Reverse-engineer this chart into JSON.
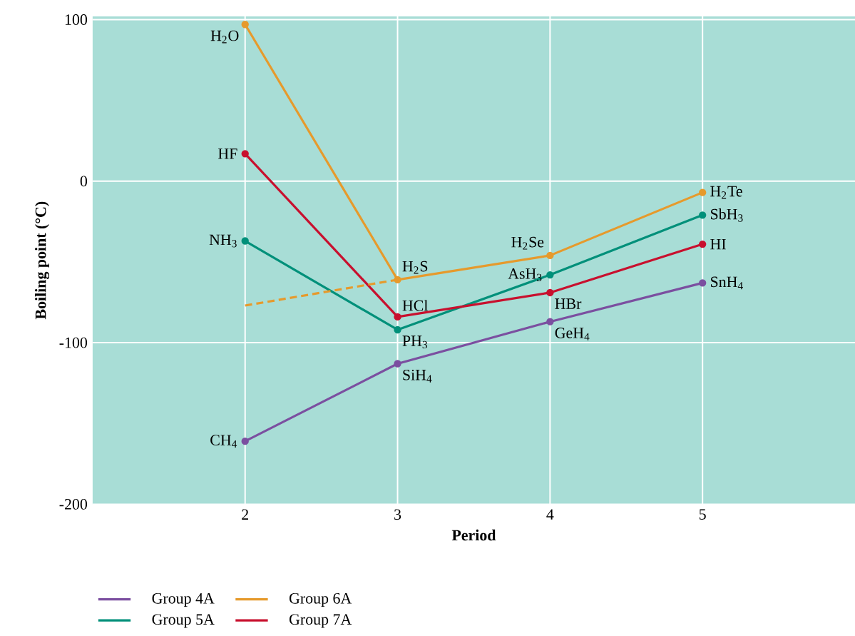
{
  "chart_data": {
    "type": "line",
    "xlabel": "Period",
    "ylabel": "Boiling point (°C)",
    "x": [
      2,
      3,
      4,
      5
    ],
    "series": [
      {
        "name": "Group 4A",
        "color": "#7b4fa0",
        "values": [
          -161,
          -113,
          -87,
          -63
        ]
      },
      {
        "name": "Group 5A",
        "color": "#00907a",
        "values": [
          -37,
          -92,
          -58,
          -21
        ]
      },
      {
        "name": "Group 6A",
        "color": "#e69a2c",
        "values": [
          97,
          -61,
          -46,
          -7
        ]
      },
      {
        "name": "Group 7A",
        "color": "#c8102e",
        "values": [
          17,
          -84,
          -69,
          -39
        ]
      },
      {
        "color": "#e69a2c",
        "x": [
          2,
          3
        ],
        "values": [
          -77,
          -61
        ],
        "line_style": "dashed",
        "marker": "none"
      }
    ],
    "xlim": [
      1,
      6
    ],
    "ylim": [
      -200,
      102
    ],
    "xticks": [
      2,
      3,
      4,
      5
    ],
    "yticks": [
      -200,
      -100,
      0,
      100
    ],
    "grid": true,
    "legend": "bottom",
    "marker": "circle",
    "line_style": "solid",
    "annotations": [
      {
        "text": "CH$_{4}$",
        "x": 2,
        "y": -161
      },
      {
        "text": "SiH$_{4}$",
        "x": 3,
        "y": -113
      },
      {
        "text": "GeH$_{4}$",
        "x": 4,
        "y": -87
      },
      {
        "text": "SnH$_{4}$",
        "x": 5,
        "y": -63
      },
      {
        "text": "NH$_{3}$",
        "x": 2,
        "y": -37
      },
      {
        "text": "PH$_{3}$",
        "x": 3,
        "y": -92
      },
      {
        "text": "AsH$_{3}$",
        "x": 4,
        "y": -58
      },
      {
        "text": "SbH$_{3}$",
        "x": 5,
        "y": -21
      },
      {
        "text": "H$_{2}$O",
        "x": 2,
        "y": 97
      },
      {
        "text": "H$_{2}$S",
        "x": 3,
        "y": -61
      },
      {
        "text": "H$_{2}$Se",
        "x": 4,
        "y": -46
      },
      {
        "text": "H$_{2}$Te",
        "x": 5,
        "y": -7
      },
      {
        "text": "HF",
        "x": 2,
        "y": 17
      },
      {
        "text": "HCl",
        "x": 3,
        "y": -84
      },
      {
        "text": "HBr",
        "x": 4,
        "y": -69
      },
      {
        "text": "HI",
        "x": 5,
        "y": -39
      }
    ]
  }
}
